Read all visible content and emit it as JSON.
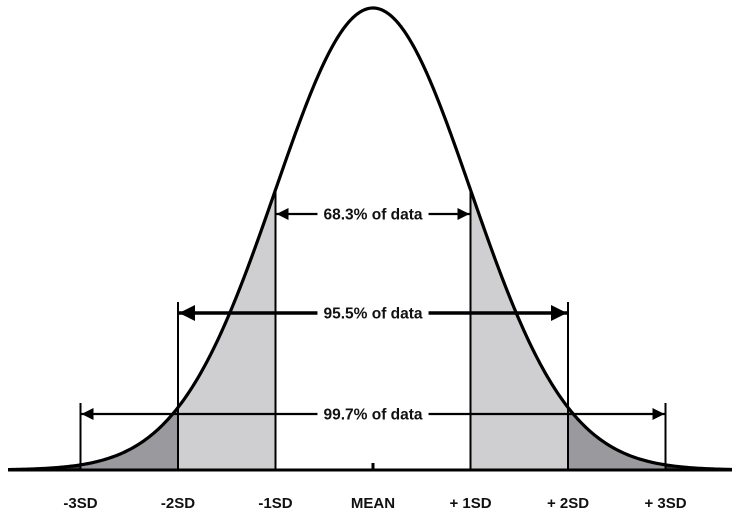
{
  "chart_data": {
    "type": "area",
    "title": "",
    "xlabel": "",
    "ylabel": "",
    "x_range": [
      -3.7,
      3.7
    ],
    "distribution": {
      "name": "normal",
      "mean": 0,
      "sd": 1
    },
    "tick_labels": [
      "-3SD",
      "-2SD",
      "-1SD",
      "MEAN",
      "+ 1SD",
      "+ 2SD",
      "+ 3SD"
    ],
    "tick_values": [
      -3,
      -2,
      -1,
      0,
      1,
      2,
      3
    ],
    "shaded_regions": [
      {
        "from": -1,
        "to": 0,
        "color": "#ffffff"
      },
      {
        "from": 0,
        "to": 1,
        "color": "#ffffff"
      },
      {
        "from": -2,
        "to": -1,
        "color": "#cfcfd1"
      },
      {
        "from": 1,
        "to": 2,
        "color": "#cfcfd1"
      },
      {
        "from": -3,
        "to": -2,
        "color": "#9a9a9e"
      },
      {
        "from": 2,
        "to": 3,
        "color": "#9a9a9e"
      },
      {
        "from": -3.7,
        "to": -3,
        "color": "#3a3a3c"
      },
      {
        "from": 3,
        "to": 3.7,
        "color": "#3a3a3c"
      }
    ],
    "annotations": [
      {
        "label": "68.3% of data",
        "from": -1,
        "to": 1
      },
      {
        "label": "95.5% of data",
        "from": -2,
        "to": 2
      },
      {
        "label": "99.7% of data",
        "from": -3,
        "to": 3
      }
    ]
  }
}
